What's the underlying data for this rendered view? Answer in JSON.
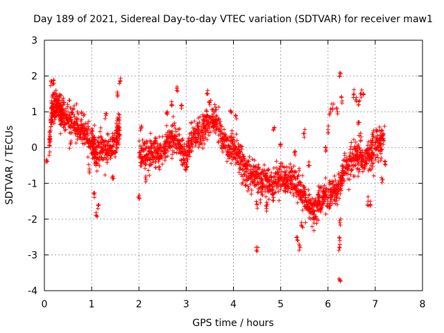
{
  "chart_data": {
    "type": "scatter",
    "title": "Day 189 of 2021, Sidereal Day-to-day VTEC variation (SDTVAR) for receiver maw1",
    "xlabel": "GPS time / hours",
    "ylabel": "SDTVAR / TECUs",
    "xlim": [
      0,
      8
    ],
    "ylim": [
      -4,
      3
    ],
    "x_ticks": [
      0,
      1,
      2,
      3,
      4,
      5,
      6,
      7,
      8
    ],
    "y_ticks": [
      -4,
      -3,
      -2,
      -1,
      0,
      1,
      2,
      3
    ],
    "grid": true,
    "legend": "none",
    "marker": "+",
    "series": [
      {
        "name": "SDTVAR",
        "color": "#ff0000",
        "trend": [
          [
            0.1,
            -0.1
          ],
          [
            0.15,
            1.0
          ],
          [
            0.2,
            1.1
          ],
          [
            0.25,
            1.2
          ],
          [
            0.3,
            1.1
          ],
          [
            0.35,
            1.0
          ],
          [
            0.4,
            0.9
          ],
          [
            0.5,
            0.8
          ],
          [
            0.6,
            0.7
          ],
          [
            0.7,
            0.55
          ],
          [
            0.8,
            0.5
          ],
          [
            0.9,
            0.3
          ],
          [
            1.0,
            0.1
          ],
          [
            1.05,
            0.0
          ],
          [
            1.1,
            -0.2
          ],
          [
            1.2,
            0.0
          ],
          [
            1.3,
            -0.1
          ],
          [
            1.4,
            0.0
          ],
          [
            1.5,
            0.1
          ],
          [
            1.55,
            0.5
          ],
          [
            1.6,
            0.6
          ],
          [
            2.0,
            -0.3
          ],
          [
            2.1,
            -0.2
          ],
          [
            2.2,
            -0.3
          ],
          [
            2.3,
            -0.1
          ],
          [
            2.4,
            -0.2
          ],
          [
            2.5,
            -0.1
          ],
          [
            2.6,
            0.1
          ],
          [
            2.7,
            0.2
          ],
          [
            2.8,
            0.3
          ],
          [
            2.9,
            -0.1
          ],
          [
            3.0,
            -0.3
          ],
          [
            3.1,
            0.2
          ],
          [
            3.2,
            0.3
          ],
          [
            3.3,
            0.4
          ],
          [
            3.4,
            0.6
          ],
          [
            3.5,
            0.7
          ],
          [
            3.6,
            0.8
          ],
          [
            3.7,
            0.5
          ],
          [
            3.8,
            0.1
          ],
          [
            3.9,
            -0.1
          ],
          [
            4.0,
            0.0
          ],
          [
            4.1,
            -0.2
          ],
          [
            4.2,
            -0.5
          ],
          [
            4.3,
            -0.7
          ],
          [
            4.4,
            -0.8
          ],
          [
            4.5,
            -0.9
          ],
          [
            4.6,
            -1.0
          ],
          [
            4.7,
            -0.9
          ],
          [
            4.8,
            -1.1
          ],
          [
            4.9,
            -0.9
          ],
          [
            5.0,
            -0.8
          ],
          [
            5.1,
            -1.0
          ],
          [
            5.2,
            -0.9
          ],
          [
            5.3,
            -0.8
          ],
          [
            5.4,
            -1.2
          ],
          [
            5.5,
            -1.5
          ],
          [
            5.6,
            -1.7
          ],
          [
            5.7,
            -1.8
          ],
          [
            5.8,
            -1.5
          ],
          [
            5.9,
            -1.4
          ],
          [
            6.0,
            -1.4
          ],
          [
            6.1,
            -1.3
          ],
          [
            6.2,
            -1.2
          ],
          [
            6.3,
            -0.8
          ],
          [
            6.4,
            -0.6
          ],
          [
            6.5,
            -0.4
          ],
          [
            6.6,
            -0.3
          ],
          [
            6.7,
            -0.4
          ],
          [
            6.8,
            -0.3
          ],
          [
            6.9,
            -0.2
          ],
          [
            7.0,
            0.0
          ],
          [
            7.1,
            0.2
          ],
          [
            7.2,
            0.3
          ]
        ],
        "excursions": [
          [
            0.05,
            -0.35
          ],
          [
            0.15,
            1.85
          ],
          [
            0.2,
            1.8
          ],
          [
            0.55,
            0.1
          ],
          [
            0.95,
            -0.6
          ],
          [
            1.05,
            -1.3
          ],
          [
            1.1,
            -1.9
          ],
          [
            1.15,
            -1.6
          ],
          [
            1.3,
            0.9
          ],
          [
            1.55,
            1.5
          ],
          [
            1.6,
            1.85
          ],
          [
            1.45,
            -0.8
          ],
          [
            2.0,
            -1.4
          ],
          [
            2.05,
            0.6
          ],
          [
            2.15,
            -0.9
          ],
          [
            2.6,
            1.0
          ],
          [
            2.7,
            1.2
          ],
          [
            2.8,
            1.6
          ],
          [
            2.9,
            1.1
          ],
          [
            3.45,
            1.5
          ],
          [
            3.5,
            1.2
          ],
          [
            3.95,
            1.0
          ],
          [
            4.05,
            0.9
          ],
          [
            4.5,
            -2.9
          ],
          [
            4.5,
            -1.6
          ],
          [
            4.7,
            -1.7
          ],
          [
            4.85,
            0.5
          ],
          [
            5.0,
            0.1
          ],
          [
            5.3,
            -0.1
          ],
          [
            5.35,
            -2.5
          ],
          [
            5.4,
            -2.75
          ],
          [
            5.45,
            -2.2
          ],
          [
            5.5,
            0.4
          ],
          [
            5.6,
            -0.5
          ],
          [
            5.75,
            -2.0
          ],
          [
            5.85,
            -1.8
          ],
          [
            5.95,
            0.0
          ],
          [
            6.0,
            0.5
          ],
          [
            6.05,
            1.0
          ],
          [
            6.1,
            1.1
          ],
          [
            6.2,
            1.0
          ],
          [
            6.25,
            2.0
          ],
          [
            6.3,
            1.3
          ],
          [
            6.25,
            -2.1
          ],
          [
            6.25,
            -2.6
          ],
          [
            6.25,
            -2.8
          ],
          [
            6.25,
            -3.7
          ],
          [
            6.55,
            1.5
          ],
          [
            6.6,
            1.4
          ],
          [
            6.65,
            1.2
          ],
          [
            6.7,
            1.5
          ],
          [
            6.75,
            1.5
          ],
          [
            6.65,
            0.7
          ],
          [
            6.7,
            0.3
          ],
          [
            6.85,
            -1.5
          ],
          [
            6.9,
            -1.6
          ],
          [
            6.95,
            0.3
          ],
          [
            7.15,
            -0.9
          ],
          [
            7.2,
            -0.4
          ]
        ]
      }
    ]
  }
}
